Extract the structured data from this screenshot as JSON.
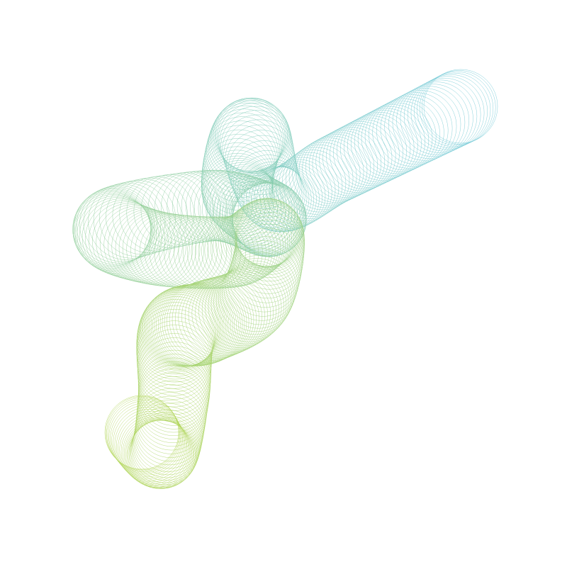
{
  "artwork": {
    "background_color": "#ffffff",
    "palette": {
      "start_color": "#6fc8d6",
      "mid_color": "#93cf99",
      "end_color": "#b2d657"
    },
    "motif": "ring-trail"
  }
}
